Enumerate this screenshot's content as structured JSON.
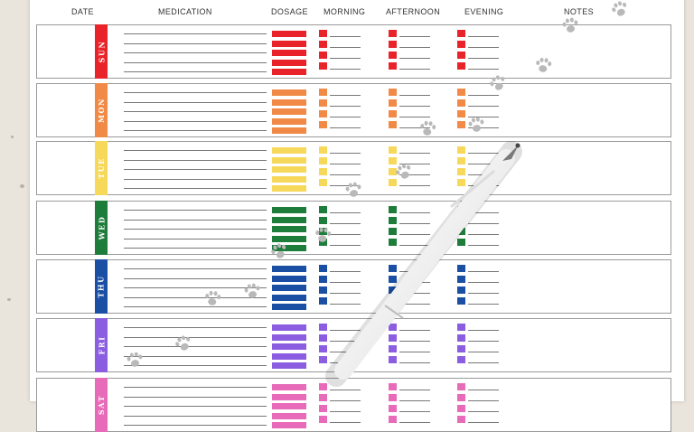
{
  "headers": {
    "date": "DATE",
    "medication": "MEDICATION",
    "dosage": "DOSAGE",
    "morning": "MORNING",
    "afternoon": "AFTERNOON",
    "evening": "EVENING",
    "notes": "NOTES"
  },
  "days": [
    {
      "label": "SUN",
      "color": "#e8232a"
    },
    {
      "label": "MON",
      "color": "#f08a46"
    },
    {
      "label": "TUE",
      "color": "#f6d85a"
    },
    {
      "label": "WED",
      "color": "#1f7d3c"
    },
    {
      "label": "THU",
      "color": "#1b4fa3"
    },
    {
      "label": "FRI",
      "color": "#8b5de0"
    },
    {
      "label": "SAT",
      "color": "#e76bb8"
    }
  ],
  "colors": {
    "paw_print": "#b9b9b9",
    "pen_body": "#f1f1f1",
    "rule_line": "#777777"
  },
  "icons": [
    "paw-print-icon",
    "pen-icon"
  ]
}
